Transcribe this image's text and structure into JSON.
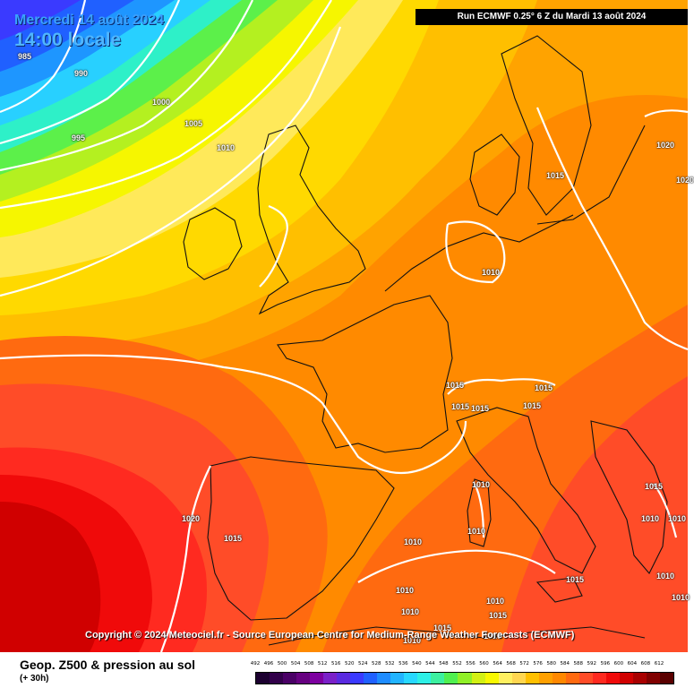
{
  "header": {
    "date": "Mercredi 14 août 2024",
    "time": "14:00 locale",
    "run_info": "Run ECMWF 0.25° 6 Z du Mardi 13 août 2024"
  },
  "copyright": "Copyright © 2024 Meteociel.fr - Source European Centre for Medium-Range Weather Forecasts (ECMWF)",
  "footer": {
    "field_title": "Geop. Z500 & pression au sol",
    "lead_time": "(+ 30h)"
  },
  "isobar_labels": [
    "985",
    "990",
    "995",
    "1000",
    "1005",
    "1010",
    "1020",
    "1015",
    "1010",
    "1015",
    "1015",
    "1015",
    "1015",
    "1015",
    "1015",
    "1010",
    "1010",
    "1010",
    "1020",
    "1015",
    "1010",
    "1010",
    "1015",
    "1010",
    "1010",
    "1010",
    "1015",
    "1015",
    "1010",
    "1010",
    "1010",
    "1020",
    "1010"
  ],
  "scale": {
    "labels": [
      "492",
      "496",
      "500",
      "504",
      "508",
      "512",
      "516",
      "520",
      "524",
      "528",
      "532",
      "536",
      "540",
      "544",
      "548",
      "552",
      "556",
      "560",
      "564",
      "568",
      "572",
      "576",
      "580",
      "584",
      "588",
      "592",
      "596",
      "600",
      "604",
      "608",
      "612"
    ],
    "colors": [
      "#1c0030",
      "#32004a",
      "#4a0066",
      "#660080",
      "#7d00a0",
      "#7a20c8",
      "#5a2ae0",
      "#3a3aff",
      "#2060ff",
      "#1e8cff",
      "#22b4ff",
      "#28d8ff",
      "#2ef0e6",
      "#3cf0a0",
      "#50f050",
      "#90f028",
      "#d2f014",
      "#f8f800",
      "#fff060",
      "#ffd650",
      "#ffc000",
      "#ffa000",
      "#ff8800",
      "#ff6a10",
      "#ff4c28",
      "#ff2a20",
      "#f00a0a",
      "#d00000",
      "#a80000",
      "#800000",
      "#5a0000"
    ]
  }
}
